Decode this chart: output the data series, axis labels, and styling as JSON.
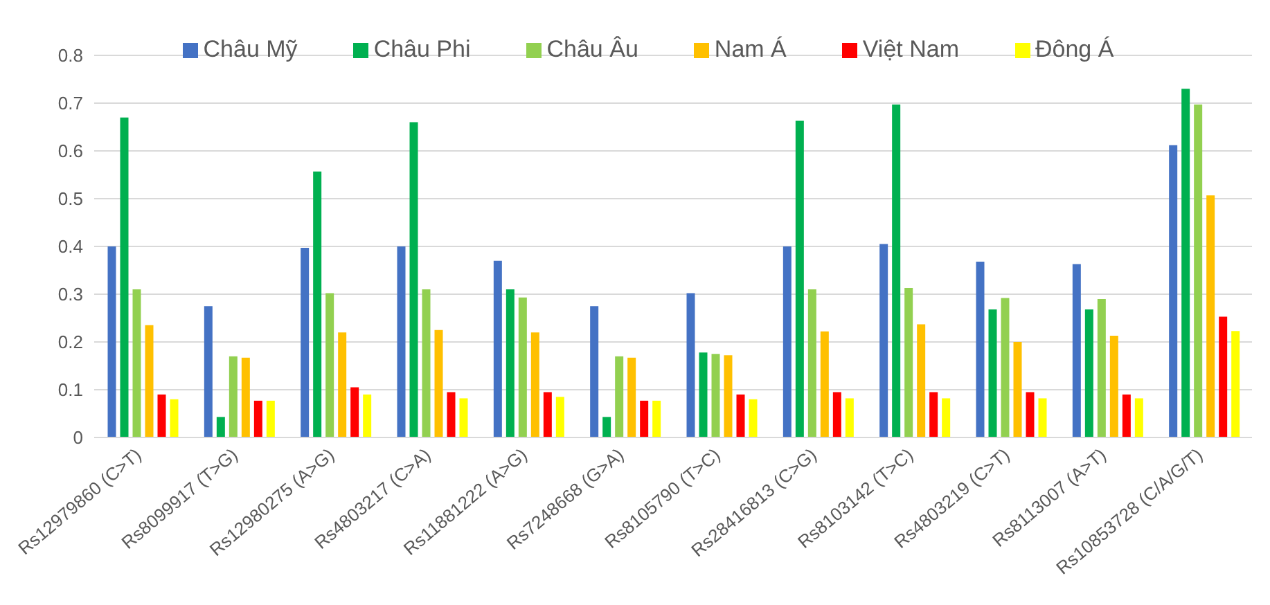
{
  "chart_data": {
    "type": "bar",
    "categories": [
      "Rs12979860 (C>T)",
      "Rs8099917 (T>G)",
      "Rs12980275 (A>G)",
      "Rs4803217 (C>A)",
      "Rs11881222 (A>G)",
      "Rs7248668 (G>A)",
      "Rs8105790 (T>C)",
      "Rs28416813 (C>G)",
      "Rs8103142 (T>C)",
      "Rs4803219 (C>T)",
      "Rs8113007 (A>T)",
      "Rs10853728 (C/A/G/T)"
    ],
    "series": [
      {
        "name": "Châu Mỹ",
        "color": "#4472c4",
        "values": [
          0.4,
          0.275,
          0.397,
          0.4,
          0.37,
          0.275,
          0.302,
          0.4,
          0.405,
          0.368,
          0.363,
          0.612
        ]
      },
      {
        "name": "Châu Phi",
        "color": "#00b050",
        "values": [
          0.67,
          0.043,
          0.557,
          0.66,
          0.31,
          0.043,
          0.178,
          0.663,
          0.697,
          0.268,
          0.268,
          0.73
        ]
      },
      {
        "name": "Châu Âu",
        "color": "#92d050",
        "values": [
          0.31,
          0.17,
          0.302,
          0.31,
          0.293,
          0.17,
          0.175,
          0.31,
          0.313,
          0.292,
          0.29,
          0.697
        ]
      },
      {
        "name": "Nam Á",
        "color": "#ffc000",
        "values": [
          0.235,
          0.167,
          0.22,
          0.225,
          0.22,
          0.167,
          0.172,
          0.222,
          0.237,
          0.2,
          0.213,
          0.507
        ]
      },
      {
        "name": "Việt Nam",
        "color": "#ff0000",
        "values": [
          0.09,
          0.077,
          0.105,
          0.095,
          0.095,
          0.077,
          0.09,
          0.095,
          0.095,
          0.095,
          0.09,
          0.253
        ]
      },
      {
        "name": "Đông Á",
        "color": "#ffff00",
        "values": [
          0.08,
          0.077,
          0.09,
          0.082,
          0.085,
          0.077,
          0.08,
          0.082,
          0.082,
          0.082,
          0.082,
          0.223
        ]
      }
    ],
    "ylim": [
      0,
      0.8
    ],
    "yticks": [
      0,
      0.1,
      0.2,
      0.3,
      0.4,
      0.5,
      0.6,
      0.7,
      0.8
    ],
    "grid": "y",
    "legend": "top"
  }
}
